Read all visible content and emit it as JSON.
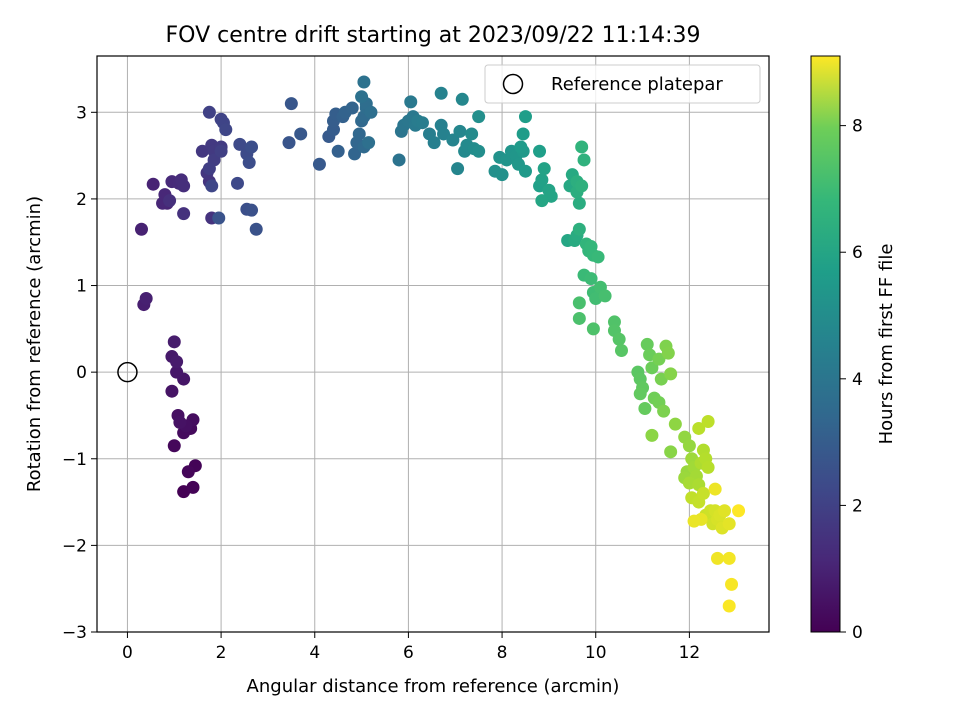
{
  "chart_data": {
    "type": "scatter",
    "title": "FOV centre drift starting at 2023/09/22 11:14:39",
    "xlabel": "Angular distance from reference (arcmin)",
    "ylabel": "Rotation from reference (arcmin)",
    "xlim": [
      -0.65,
      13.7
    ],
    "ylim": [
      -3.0,
      3.65
    ],
    "x_ticks": [
      0,
      2,
      4,
      6,
      8,
      10,
      12
    ],
    "y_ticks": [
      -3,
      -2,
      -1,
      0,
      1,
      2,
      3
    ],
    "x_tick_labels": [
      "0",
      "2",
      "4",
      "6",
      "8",
      "10",
      "12"
    ],
    "y_tick_labels": [
      "−3",
      "−2",
      "−1",
      "0",
      "1",
      "2",
      "3"
    ],
    "grid": true,
    "legend": {
      "position": "top-right",
      "entries": [
        "Reference platepar"
      ]
    },
    "reference_point": {
      "x": 0,
      "y": 0
    },
    "colorbar": {
      "label": "Hours from first FF file",
      "min": 0,
      "max": 9.1,
      "ticks": [
        0,
        2,
        4,
        6,
        8
      ],
      "tick_labels": [
        "0",
        "2",
        "4",
        "6",
        "8"
      ],
      "colormap": "viridis"
    },
    "series": [
      {
        "points": [
          [
            1.2,
            -1.38
          ],
          [
            1.4,
            -1.33
          ],
          [
            1.45,
            -1.08
          ],
          [
            1.3,
            -1.15
          ],
          [
            1.0,
            -0.85
          ],
          [
            1.35,
            -0.65
          ],
          [
            1.2,
            -0.7
          ],
          [
            1.4,
            -0.55
          ],
          [
            1.25,
            -0.62
          ],
          [
            1.08,
            -0.5
          ],
          [
            1.12,
            -0.58
          ],
          [
            0.95,
            -0.22
          ],
          [
            1.2,
            -0.08
          ],
          [
            1.05,
            0.0
          ],
          [
            0.95,
            0.18
          ],
          [
            1.05,
            0.12
          ],
          [
            1.0,
            0.35
          ],
          [
            0.35,
            0.78
          ],
          [
            0.4,
            0.85
          ],
          [
            0.3,
            1.65
          ],
          [
            0.55,
            2.17
          ],
          [
            0.85,
            1.95
          ],
          [
            0.75,
            1.95
          ],
          [
            0.8,
            2.05
          ],
          [
            0.95,
            2.2
          ],
          [
            1.1,
            2.18
          ],
          [
            1.15,
            2.22
          ],
          [
            1.2,
            2.15
          ],
          [
            0.9,
            1.98
          ],
          [
            1.2,
            1.83
          ],
          [
            1.8,
            1.78
          ],
          [
            1.75,
            2.2
          ],
          [
            1.7,
            2.3
          ],
          [
            1.6,
            2.55
          ],
          [
            1.8,
            2.62
          ],
          [
            1.85,
            2.55
          ],
          [
            2.0,
            2.6
          ],
          [
            1.85,
            2.45
          ],
          [
            1.75,
            2.35
          ],
          [
            2.0,
            2.55
          ],
          [
            1.75,
            3.0
          ],
          [
            2.0,
            2.92
          ],
          [
            2.05,
            2.88
          ],
          [
            2.1,
            2.8
          ],
          [
            1.8,
            2.15
          ],
          [
            2.35,
            2.18
          ],
          [
            2.4,
            2.63
          ],
          [
            2.55,
            2.52
          ],
          [
            2.6,
            2.42
          ],
          [
            2.65,
            2.6
          ],
          [
            2.55,
            1.88
          ],
          [
            2.65,
            1.87
          ],
          [
            2.75,
            1.65
          ],
          [
            1.95,
            1.78
          ],
          [
            3.45,
            2.65
          ],
          [
            3.5,
            3.1
          ],
          [
            3.7,
            2.75
          ],
          [
            4.1,
            2.4
          ],
          [
            4.3,
            2.72
          ],
          [
            4.4,
            2.8
          ],
          [
            4.4,
            2.9
          ],
          [
            4.45,
            2.98
          ],
          [
            4.5,
            2.55
          ],
          [
            4.6,
            2.95
          ],
          [
            4.65,
            3.0
          ],
          [
            4.8,
            3.05
          ],
          [
            4.85,
            2.52
          ],
          [
            4.9,
            2.65
          ],
          [
            4.95,
            2.75
          ],
          [
            5.0,
            2.9
          ],
          [
            5.05,
            2.6
          ],
          [
            5.05,
            2.95
          ],
          [
            5.1,
            3.05
          ],
          [
            5.1,
            3.1
          ],
          [
            5.2,
            3.0
          ],
          [
            5.15,
            2.65
          ],
          [
            5.0,
            3.18
          ],
          [
            5.05,
            3.35
          ],
          [
            5.8,
            2.45
          ],
          [
            5.85,
            2.78
          ],
          [
            5.9,
            2.85
          ],
          [
            6.0,
            2.9
          ],
          [
            6.1,
            2.95
          ],
          [
            6.05,
            3.12
          ],
          [
            6.15,
            2.85
          ],
          [
            6.2,
            2.9
          ],
          [
            6.3,
            2.88
          ],
          [
            6.45,
            2.75
          ],
          [
            6.55,
            2.65
          ],
          [
            6.7,
            2.85
          ],
          [
            6.75,
            2.75
          ],
          [
            6.7,
            3.22
          ],
          [
            6.95,
            2.68
          ],
          [
            7.05,
            2.35
          ],
          [
            7.1,
            2.78
          ],
          [
            7.15,
            3.15
          ],
          [
            7.2,
            2.55
          ],
          [
            7.25,
            2.62
          ],
          [
            7.35,
            2.75
          ],
          [
            7.4,
            2.58
          ],
          [
            7.5,
            2.55
          ],
          [
            7.5,
            2.95
          ],
          [
            7.85,
            2.32
          ],
          [
            8.0,
            2.28
          ],
          [
            7.95,
            2.48
          ],
          [
            8.1,
            2.45
          ],
          [
            8.2,
            2.55
          ],
          [
            8.3,
            2.5
          ],
          [
            8.35,
            2.4
          ],
          [
            8.45,
            2.55
          ],
          [
            8.5,
            2.32
          ],
          [
            8.4,
            2.6
          ],
          [
            8.45,
            2.75
          ],
          [
            8.5,
            2.95
          ],
          [
            8.8,
            2.55
          ],
          [
            8.8,
            2.15
          ],
          [
            8.85,
            2.22
          ],
          [
            8.9,
            2.35
          ],
          [
            9.0,
            2.1
          ],
          [
            9.05,
            2.03
          ],
          [
            8.85,
            1.98
          ],
          [
            9.4,
            1.52
          ],
          [
            9.45,
            2.15
          ],
          [
            9.5,
            2.28
          ],
          [
            9.55,
            1.52
          ],
          [
            9.6,
            1.58
          ],
          [
            9.65,
            1.95
          ],
          [
            9.6,
            2.08
          ],
          [
            9.6,
            2.2
          ],
          [
            9.65,
            1.65
          ],
          [
            9.7,
            2.15
          ],
          [
            9.75,
            2.45
          ],
          [
            9.7,
            2.6
          ],
          [
            9.8,
            1.48
          ],
          [
            9.85,
            1.4
          ],
          [
            9.9,
            1.45
          ],
          [
            9.95,
            1.35
          ],
          [
            10.05,
            1.33
          ],
          [
            9.75,
            1.12
          ],
          [
            9.9,
            1.08
          ],
          [
            9.95,
            0.92
          ],
          [
            10.0,
            0.85
          ],
          [
            10.1,
            0.98
          ],
          [
            10.2,
            0.88
          ],
          [
            9.65,
            0.8
          ],
          [
            9.65,
            0.62
          ],
          [
            9.95,
            0.5
          ],
          [
            10.4,
            0.58
          ],
          [
            10.4,
            0.48
          ],
          [
            10.5,
            0.38
          ],
          [
            10.55,
            0.25
          ],
          [
            10.9,
            0.0
          ],
          [
            10.95,
            -0.08
          ],
          [
            11.0,
            -0.18
          ],
          [
            10.95,
            -0.25
          ],
          [
            11.05,
            -0.42
          ],
          [
            11.1,
            0.32
          ],
          [
            11.15,
            0.2
          ],
          [
            11.2,
            0.05
          ],
          [
            11.25,
            -0.3
          ],
          [
            11.35,
            -0.35
          ],
          [
            11.35,
            0.15
          ],
          [
            11.4,
            -0.08
          ],
          [
            11.45,
            -0.45
          ],
          [
            11.5,
            0.3
          ],
          [
            11.55,
            0.22
          ],
          [
            11.6,
            -0.02
          ],
          [
            11.6,
            -0.92
          ],
          [
            11.2,
            -0.73
          ],
          [
            11.7,
            -0.6
          ],
          [
            11.9,
            -0.75
          ],
          [
            12.0,
            -0.85
          ],
          [
            11.95,
            -1.15
          ],
          [
            11.9,
            -1.22
          ],
          [
            12.05,
            -1.0
          ],
          [
            12.1,
            -1.1
          ],
          [
            12.15,
            -1.2
          ],
          [
            12.0,
            -1.28
          ],
          [
            12.2,
            -1.3
          ],
          [
            12.25,
            -1.05
          ],
          [
            12.3,
            -0.9
          ],
          [
            12.35,
            -1.0
          ],
          [
            12.4,
            -1.1
          ],
          [
            12.2,
            -0.65
          ],
          [
            12.4,
            -0.57
          ],
          [
            12.05,
            -1.45
          ],
          [
            12.2,
            -1.5
          ],
          [
            12.3,
            -1.4
          ],
          [
            12.35,
            -1.65
          ],
          [
            12.45,
            -1.6
          ],
          [
            12.5,
            -1.75
          ],
          [
            12.55,
            -1.6
          ],
          [
            12.6,
            -1.7
          ],
          [
            12.65,
            -1.65
          ],
          [
            12.7,
            -1.8
          ],
          [
            12.75,
            -1.6
          ],
          [
            12.85,
            -1.75
          ],
          [
            12.25,
            -1.7
          ],
          [
            12.1,
            -1.72
          ],
          [
            12.55,
            -1.35
          ],
          [
            12.6,
            -2.15
          ],
          [
            12.85,
            -2.15
          ],
          [
            12.9,
            -2.45
          ],
          [
            12.85,
            -2.7
          ],
          [
            13.05,
            -1.6
          ]
        ]
      }
    ]
  }
}
